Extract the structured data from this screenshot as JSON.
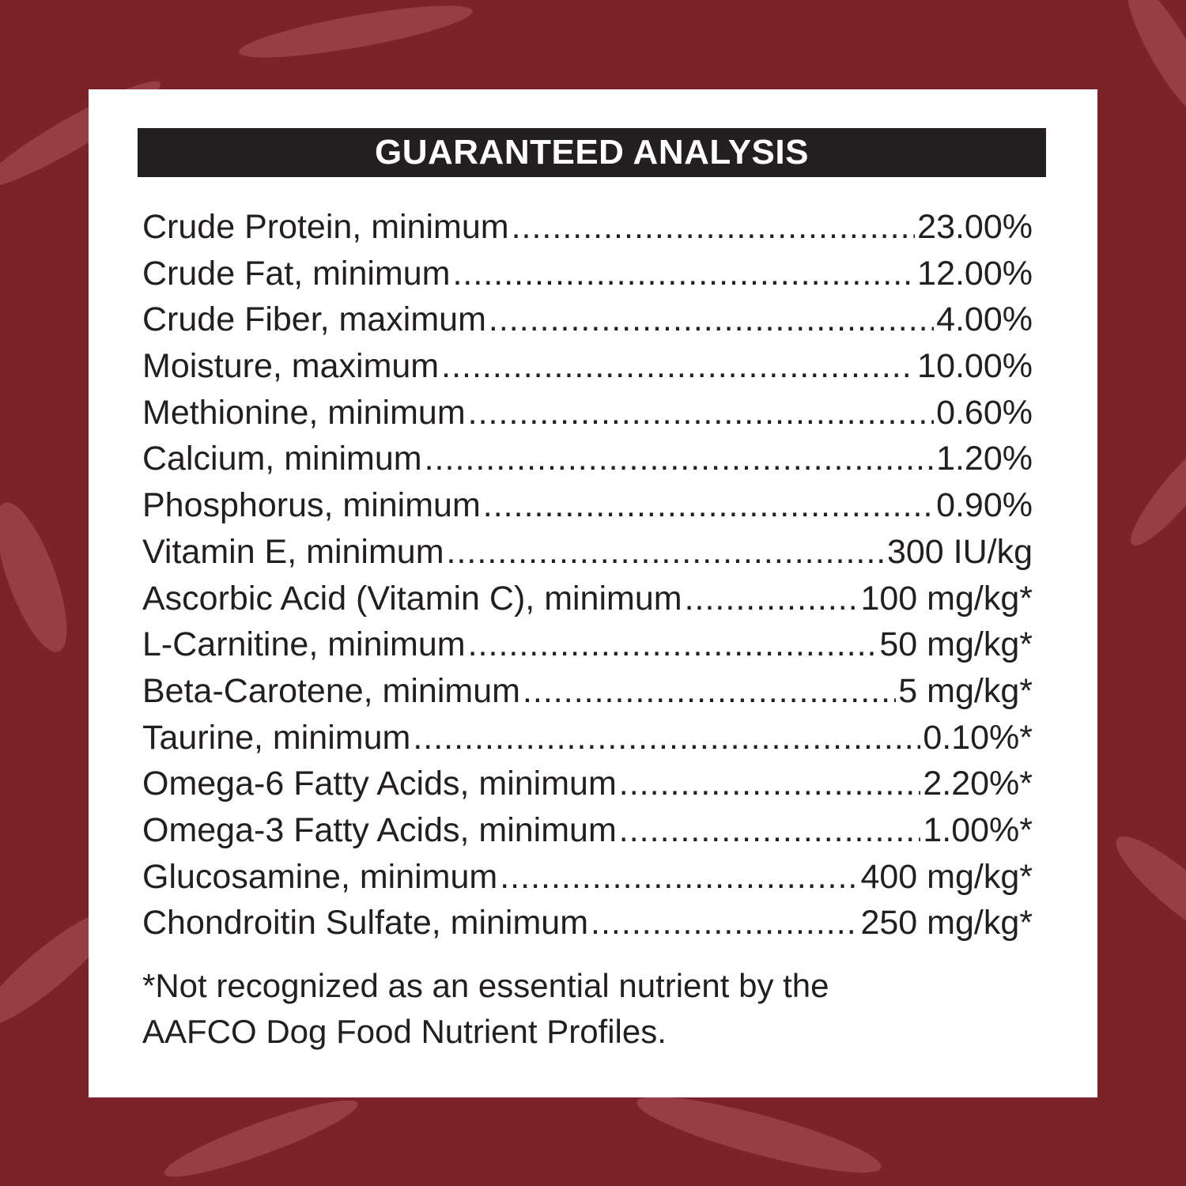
{
  "colors": {
    "background": "#7c2329",
    "pattern": "#a0484d",
    "header_bar": "#231f20",
    "card": "#ffffff"
  },
  "header": {
    "title": "GUARANTEED ANALYSIS"
  },
  "rows": [
    {
      "label": "Crude Protein, minimum",
      "value": "23.00%"
    },
    {
      "label": "Crude Fat, minimum",
      "value": "12.00%"
    },
    {
      "label": "Crude Fiber, maximum",
      "value": "4.00%"
    },
    {
      "label": "Moisture, maximum",
      "value": "10.00%"
    },
    {
      "label": "Methionine, minimum",
      "value": "0.60%"
    },
    {
      "label": "Calcium, minimum",
      "value": "1.20%"
    },
    {
      "label": "Phosphorus, minimum",
      "value": "0.90%"
    },
    {
      "label": "Vitamin E, minimum",
      "value": "300 IU/kg"
    },
    {
      "label": "Ascorbic Acid (Vitamin C), minimum",
      "value": "100 mg/kg*"
    },
    {
      "label": "L-Carnitine, minimum",
      "value": "50 mg/kg*"
    },
    {
      "label": "Beta-Carotene, minimum",
      "value": "5 mg/kg*"
    },
    {
      "label": "Taurine, minimum",
      "value": "0.10%*"
    },
    {
      "label": "Omega-6 Fatty Acids, minimum",
      "value": "2.20%*"
    },
    {
      "label": "Omega-3 Fatty Acids, minimum",
      "value": "1.00%*"
    },
    {
      "label": "Glucosamine, minimum",
      "value": "400 mg/kg*"
    },
    {
      "label": "Chondroitin Sulfate, minimum",
      "value": "250 mg/kg*"
    }
  ],
  "footnote": {
    "line1": "*Not recognized as an essential nutrient by the",
    "line2": "AAFCO Dog Food Nutrient Profiles."
  }
}
